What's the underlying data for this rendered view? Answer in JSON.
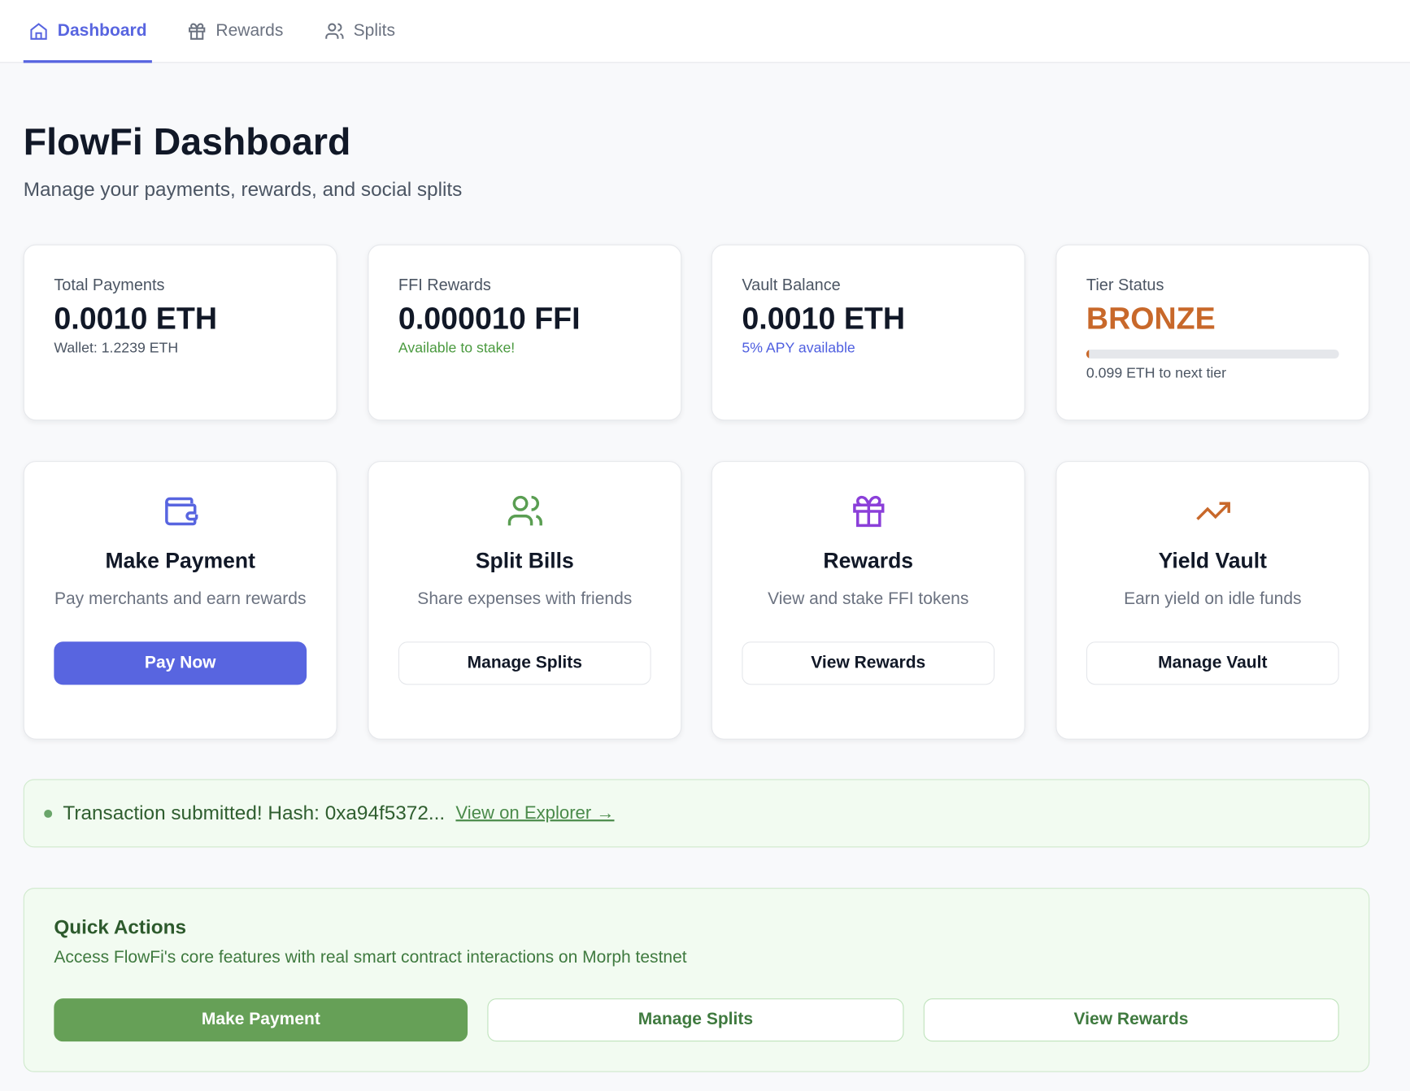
{
  "nav": {
    "items": [
      "Dashboard",
      "Rewards",
      "Splits"
    ]
  },
  "header": {
    "title": "FlowFi Dashboard",
    "subtitle": "Manage your payments, rewards, and social splits"
  },
  "stats": [
    {
      "label": "Total Payments",
      "value": "0.0010 ETH",
      "note": "Wallet: 1.2239 ETH"
    },
    {
      "label": "FFI Rewards",
      "value": "0.000010 FFI",
      "note": "Available to stake!"
    },
    {
      "label": "Vault Balance",
      "value": "0.0010 ETH",
      "note": "5% APY available"
    },
    {
      "label": "Tier Status",
      "value": "BRONZE",
      "note": "0.099 ETH to next tier"
    }
  ],
  "actions": [
    {
      "title": "Make Payment",
      "description": "Pay merchants and earn rewards",
      "button": "Pay Now"
    },
    {
      "title": "Split Bills",
      "description": "Share expenses with friends",
      "button": "Manage Splits"
    },
    {
      "title": "Rewards",
      "description": "View and stake FFI tokens",
      "button": "View Rewards"
    },
    {
      "title": "Yield Vault",
      "description": "Earn yield on idle funds",
      "button": "Manage Vault"
    }
  ],
  "banner": {
    "message": "Transaction submitted! Hash: 0xa94f5372...",
    "link": "View on Explorer →"
  },
  "quick_actions": {
    "title": "Quick Actions",
    "description": "Access FlowFi's core features with real smart contract interactions on Morph testnet",
    "buttons": [
      "Make Payment",
      "Manage Splits",
      "View Rewards"
    ]
  }
}
